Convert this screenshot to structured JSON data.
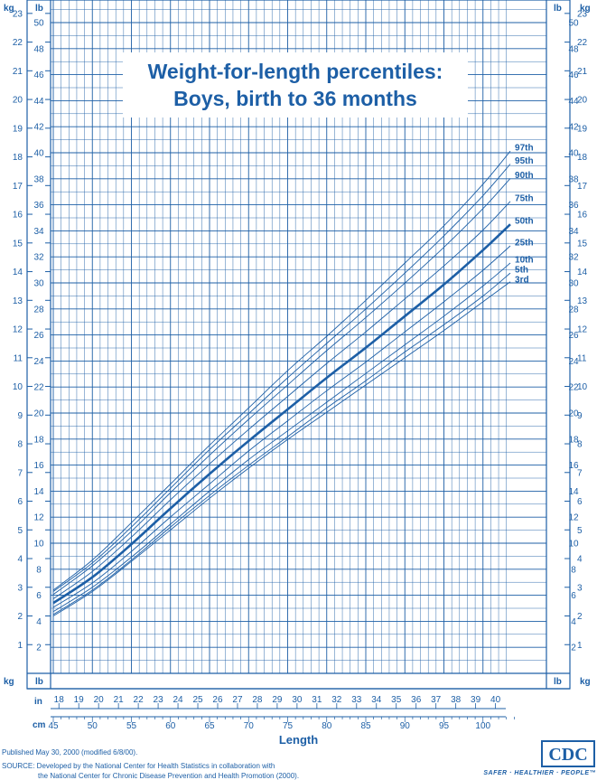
{
  "title": {
    "line1": "Weight-for-length percentiles:",
    "line2": "Boys, birth to 36 months"
  },
  "units": {
    "kg": "kg",
    "lb": "lb",
    "in": "in",
    "cm": "cm"
  },
  "colors": {
    "primary": "#1d5fa6",
    "background": "#ffffff"
  },
  "footer": {
    "published": "Published May 30, 2000 (modified 6/8/00).",
    "source_line1": "SOURCE: Developed by the National Center for Health Statistics in collaboration with",
    "source_line2": "the National Center for Chronic Disease Prevention and Health Promotion (2000).",
    "logo_text": "CDC",
    "tagline": "SAFER · HEALTHIER · PEOPLE™"
  },
  "chart_data": {
    "type": "line",
    "title": "Weight-for-length percentiles: Boys, birth to 36 months",
    "xlabel": "Length",
    "xlim_cm": [
      45,
      104
    ],
    "ylim_kg": [
      1,
      24
    ],
    "ylim_lb": [
      2,
      52
    ],
    "x_ticks_cm": [
      45,
      50,
      55,
      60,
      65,
      70,
      75,
      80,
      85,
      90,
      95,
      100
    ],
    "x_ticks_in": [
      18,
      19,
      20,
      21,
      22,
      23,
      24,
      25,
      26,
      27,
      28,
      29,
      30,
      31,
      32,
      33,
      34,
      35,
      36,
      37,
      38,
      39,
      40
    ],
    "y_ticks_kg": [
      1,
      2,
      3,
      4,
      5,
      6,
      7,
      8,
      9,
      10,
      11,
      12,
      13,
      14,
      15,
      16,
      17,
      18,
      19,
      20,
      21,
      22,
      23
    ],
    "y_ticks_lb": [
      2,
      4,
      6,
      8,
      10,
      12,
      14,
      16,
      18,
      20,
      22,
      24,
      26,
      28,
      30,
      32,
      34,
      36,
      38,
      40,
      42,
      44,
      46,
      48,
      50
    ],
    "grid": true,
    "x": [
      45,
      50,
      55,
      60,
      65,
      70,
      75,
      80,
      85,
      90,
      95,
      100,
      103.5
    ],
    "series": [
      {
        "name": "97th",
        "values": [
          2.9,
          3.95,
          5.25,
          6.6,
          7.95,
          9.25,
          10.55,
          11.75,
          13.0,
          14.3,
          15.6,
          17.05,
          18.2
        ]
      },
      {
        "name": "95th",
        "values": [
          2.85,
          3.85,
          5.1,
          6.45,
          7.8,
          9.05,
          10.3,
          11.5,
          12.7,
          13.95,
          15.25,
          16.65,
          17.75
        ]
      },
      {
        "name": "90th",
        "values": [
          2.75,
          3.75,
          4.95,
          6.3,
          7.6,
          8.85,
          10.05,
          11.25,
          12.4,
          13.6,
          14.85,
          16.2,
          17.25
        ]
      },
      {
        "name": "75th",
        "values": [
          2.6,
          3.55,
          4.75,
          6.05,
          7.3,
          8.5,
          9.65,
          10.8,
          11.9,
          13.05,
          14.2,
          15.45,
          16.45
        ]
      },
      {
        "name": "50th",
        "values": [
          2.45,
          3.35,
          4.5,
          5.75,
          6.95,
          8.1,
          9.2,
          10.3,
          11.35,
          12.45,
          13.55,
          14.75,
          15.65
        ]
      },
      {
        "name": "25th",
        "values": [
          2.3,
          3.15,
          4.25,
          5.45,
          6.6,
          7.75,
          8.8,
          9.85,
          10.85,
          11.9,
          12.95,
          14.05,
          14.9
        ]
      },
      {
        "name": "10th",
        "values": [
          2.15,
          3.0,
          4.05,
          5.2,
          6.35,
          7.45,
          8.45,
          9.45,
          10.45,
          11.45,
          12.45,
          13.5,
          14.3
        ]
      },
      {
        "name": "5th",
        "values": [
          2.05,
          2.9,
          3.95,
          5.1,
          6.2,
          7.25,
          8.25,
          9.25,
          10.2,
          11.2,
          12.15,
          13.15,
          13.95
        ]
      },
      {
        "name": "3rd",
        "values": [
          2.0,
          2.85,
          3.9,
          5.0,
          6.1,
          7.15,
          8.15,
          9.1,
          10.05,
          11.0,
          11.95,
          12.95,
          13.65
        ]
      }
    ]
  }
}
